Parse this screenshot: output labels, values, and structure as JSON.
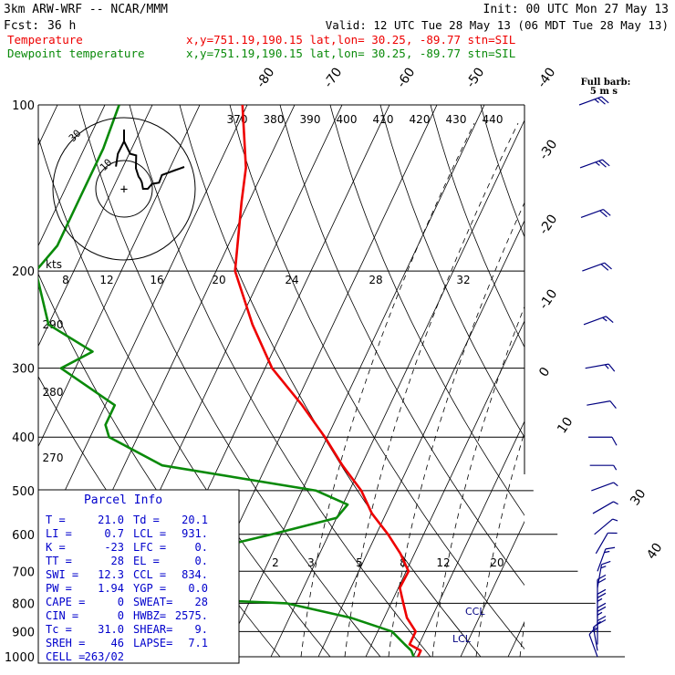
{
  "header": {
    "model": "3km ARW-WRF -- NCAR/MMM",
    "init": "Init: 00 UTC Mon 27 May 13",
    "fcst_label": "Fcst:",
    "fcst_hours": "36 h",
    "valid": "Valid: 12 UTC Tue 28 May 13 (06 MDT Tue 28 May 13)",
    "location": "x,y=751.19,190.15   lat,lon= 30.25, -89.77  stn=SIL"
  },
  "colors": {
    "temperature": "#ee0000",
    "dewpoint": "#0a8a0a",
    "parcel_info": "#0000cc",
    "wind_barbs": "#000080",
    "axes": "#000000"
  },
  "chart_data": {
    "type": "line",
    "plot_kind": "skew-T log-P sounding",
    "pressure_levels": [
      100,
      200,
      300,
      400,
      500,
      600,
      700,
      800,
      900,
      1000
    ],
    "skewed_isotherms_c": [
      -80,
      -70,
      -60,
      -50,
      -40,
      -30,
      -20,
      -10,
      0,
      10,
      30,
      40
    ],
    "theta_labels_k": [
      370,
      380,
      390,
      400,
      410,
      420,
      430,
      440
    ],
    "theta_e_labels_k": [
      290,
      280,
      270
    ],
    "mixing_ratio_labels": [
      2,
      3,
      5,
      8,
      12,
      20
    ],
    "kts_label": "kts",
    "kts_values": [
      8,
      12,
      16,
      20,
      24,
      28,
      32
    ],
    "series": [
      {
        "name": "Temperature",
        "color": "#ee0000",
        "points": [
          [
            100,
            -71
          ],
          [
            130,
            -64
          ],
          [
            150,
            -61.5
          ],
          [
            200,
            -56
          ],
          [
            250,
            -47
          ],
          [
            300,
            -38.5
          ],
          [
            350,
            -28.5
          ],
          [
            400,
            -20.5
          ],
          [
            450,
            -14
          ],
          [
            500,
            -7.5
          ],
          [
            550,
            -3
          ],
          [
            600,
            2.5
          ],
          [
            650,
            7
          ],
          [
            700,
            10.5
          ],
          [
            750,
            10.3
          ],
          [
            800,
            12.6
          ],
          [
            850,
            14.8
          ],
          [
            900,
            18
          ],
          [
            950,
            18
          ],
          [
            975,
            21
          ],
          [
            1000,
            21
          ]
        ]
      },
      {
        "name": "Dewpoint temperature",
        "color": "#0a8a0a",
        "points": [
          [
            100,
            -97
          ],
          [
            120,
            -96
          ],
          [
            150,
            -96
          ],
          [
            180,
            -96
          ],
          [
            200,
            -98
          ],
          [
            250,
            -90
          ],
          [
            280,
            -78
          ],
          [
            300,
            -83
          ],
          [
            350,
            -68
          ],
          [
            380,
            -68
          ],
          [
            400,
            -66
          ],
          [
            450,
            -52
          ],
          [
            500,
            -17
          ],
          [
            530,
            -9
          ],
          [
            560,
            -10
          ],
          [
            600,
            -22
          ],
          [
            650,
            -37
          ],
          [
            680,
            -49
          ],
          [
            700,
            -56
          ],
          [
            750,
            -91
          ],
          [
            800,
            -12
          ],
          [
            850,
            3
          ],
          [
            900,
            13
          ],
          [
            950,
            17
          ],
          [
            975,
            19
          ],
          [
            1000,
            20.1
          ]
        ]
      }
    ],
    "winds": [
      {
        "p": 100,
        "dir": 250,
        "kts": 27
      },
      {
        "p": 130,
        "dir": 250,
        "kts": 25
      },
      {
        "p": 160,
        "dir": 250,
        "kts": 23
      },
      {
        "p": 200,
        "dir": 250,
        "kts": 20
      },
      {
        "p": 250,
        "dir": 250,
        "kts": 17
      },
      {
        "p": 300,
        "dir": 260,
        "kts": 15
      },
      {
        "p": 350,
        "dir": 260,
        "kts": 12
      },
      {
        "p": 400,
        "dir": 270,
        "kts": 10
      },
      {
        "p": 450,
        "dir": 270,
        "kts": 8
      },
      {
        "p": 500,
        "dir": 250,
        "kts": 8
      },
      {
        "p": 550,
        "dir": 240,
        "kts": 8
      },
      {
        "p": 600,
        "dir": 230,
        "kts": 8
      },
      {
        "p": 650,
        "dir": 210,
        "kts": 10
      },
      {
        "p": 700,
        "dir": 200,
        "kts": 15
      },
      {
        "p": 750,
        "dir": 190,
        "kts": 15
      },
      {
        "p": 800,
        "dir": 180,
        "kts": 20
      },
      {
        "p": 850,
        "dir": 180,
        "kts": 25
      },
      {
        "p": 900,
        "dir": 180,
        "kts": 25
      },
      {
        "p": 950,
        "dir": 180,
        "kts": 20
      },
      {
        "p": 975,
        "dir": 170,
        "kts": 15
      },
      {
        "p": 1000,
        "dir": 160,
        "kts": 10
      }
    ],
    "hodograph_labels": [
      "30",
      "10"
    ],
    "barb_legend": [
      "Full barb:",
      "5 m s"
    ],
    "annotations": [
      "CCL",
      "LCL"
    ]
  },
  "parcel_info": {
    "title": "Parcel Info",
    "rows": [
      [
        "T  =",
        "21.0",
        "Td =",
        "20.1"
      ],
      [
        "LI =",
        "0.7",
        "LCL =",
        "931."
      ],
      [
        "K  =",
        "-23",
        "LFC =",
        "0."
      ],
      [
        "TT =",
        "28",
        "EL  =",
        "0."
      ],
      [
        "SWI =",
        "12.3",
        "CCL =",
        "834."
      ],
      [
        "PW =",
        "1.94",
        "YGP =",
        "0.0"
      ],
      [
        "CAPE =",
        "0",
        "SWEAT=",
        "28"
      ],
      [
        "CIN =",
        "0",
        "HWBZ=",
        "2575."
      ],
      [
        "Tc =",
        "31.0",
        "SHEAR=",
        "9."
      ],
      [
        "SREH =",
        "46",
        "LAPSE=",
        "7.1"
      ],
      [
        "CELL =",
        "263/02",
        "",
        ""
      ]
    ]
  }
}
